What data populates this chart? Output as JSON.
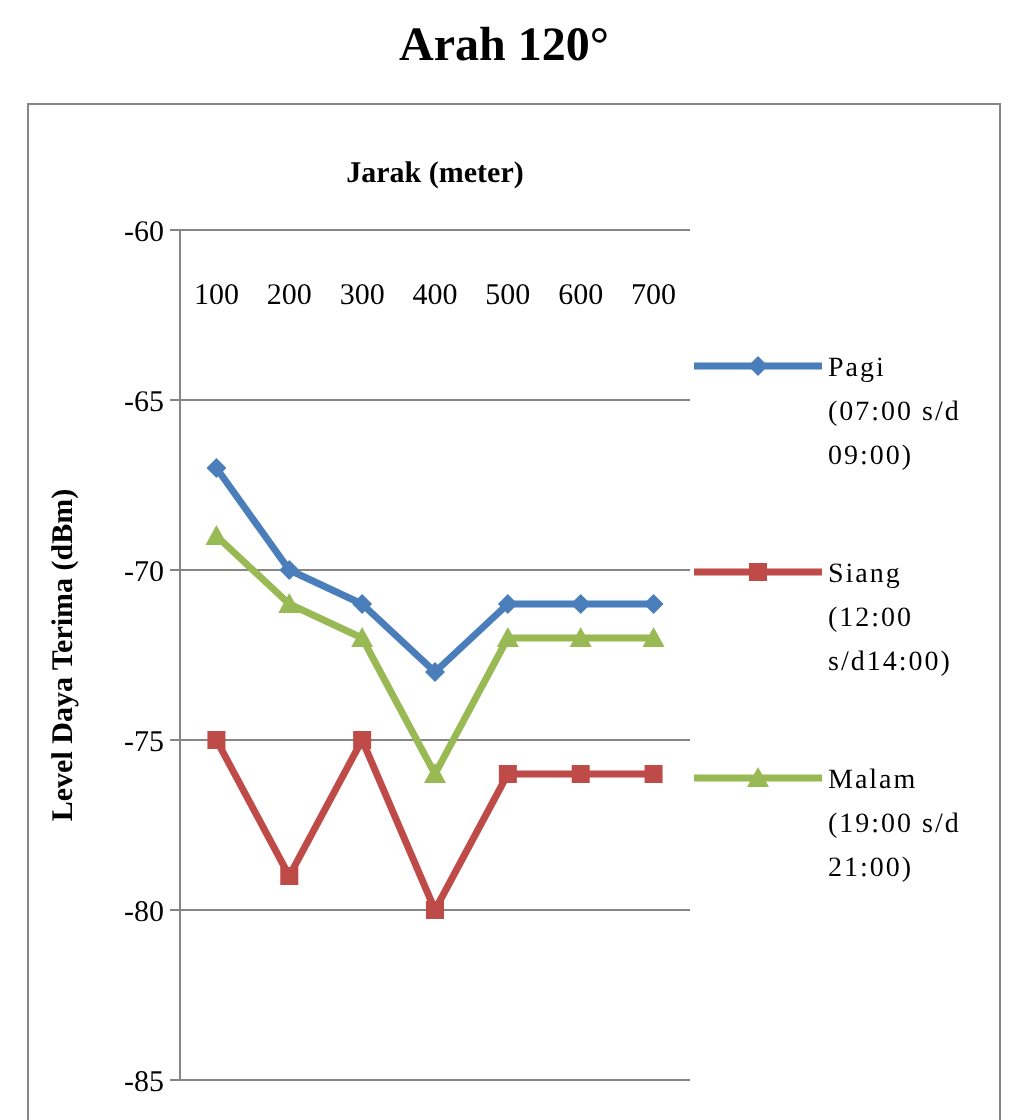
{
  "chart_data": {
    "type": "line",
    "title": "Arah 120°",
    "xlabel": "Jarak (meter)",
    "ylabel": "Level Daya Terima (dBm)",
    "categories": [
      "100",
      "200",
      "300",
      "400",
      "500",
      "600",
      "700"
    ],
    "series": [
      {
        "name": "Pagi (07:00 s/d 09:00)",
        "color": "#4a7ebb",
        "marker": "diamond",
        "values": [
          -67,
          -70,
          -71,
          -73,
          -71,
          -71,
          -71
        ]
      },
      {
        "name": "Siang (12:00 s/d14:00)",
        "color": "#be4b48",
        "marker": "square",
        "values": [
          -75,
          -79,
          -75,
          -80,
          -76,
          -76,
          -76
        ]
      },
      {
        "name": "Malam (19:00 s/d 21:00)",
        "color": "#98b954",
        "marker": "triangle",
        "values": [
          -69,
          -71,
          -72,
          -76,
          -72,
          -72,
          -72
        ]
      }
    ],
    "ylim": [
      -85,
      -60
    ],
    "yticks": [
      -85,
      -80,
      -75,
      -70,
      -65,
      -60
    ],
    "grid": "y",
    "legend": "right"
  }
}
